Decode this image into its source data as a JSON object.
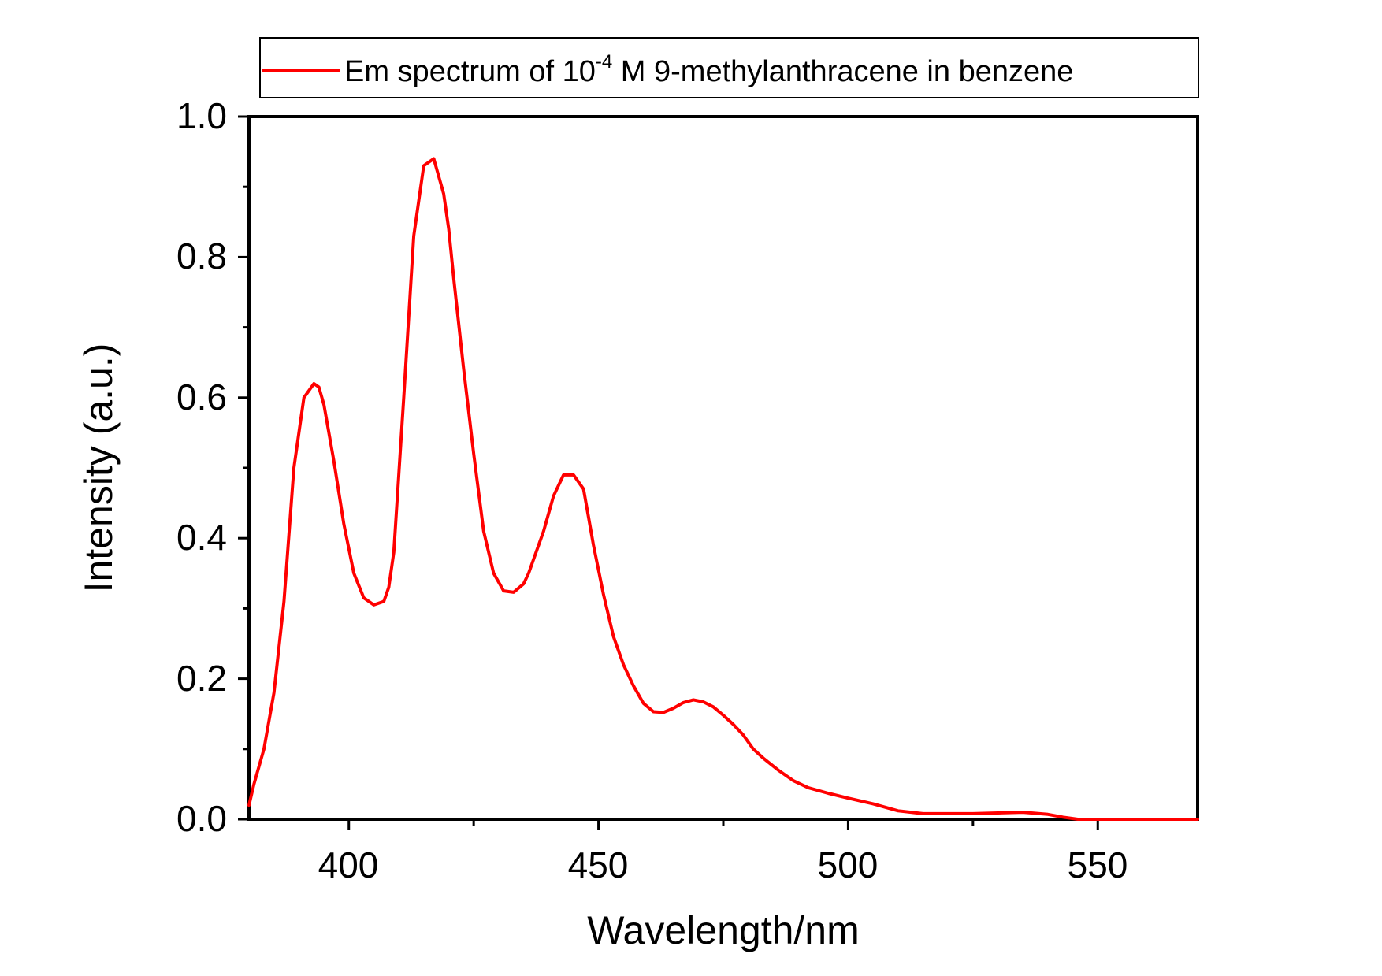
{
  "chart_data": {
    "type": "line",
    "title": "",
    "xlabel": "Wavelength/nm",
    "ylabel": "Intensity (a.u.)",
    "xlim": [
      380,
      570
    ],
    "ylim": [
      0.0,
      1.0
    ],
    "x_ticks": [
      "400",
      "450",
      "500",
      "550"
    ],
    "y_ticks": [
      "0.0",
      "0.2",
      "0.4",
      "0.6",
      "0.8",
      "1.0"
    ],
    "legend": {
      "position": "top",
      "entries": [
        {
          "prefix": "Em spectrum of 10",
          "superscript": "-4",
          "suffix": " M 9-methylanthracene in benzene"
        }
      ]
    },
    "colors": {
      "series": "#ff0000",
      "axes": "#000000"
    },
    "grid": false,
    "series": [
      {
        "name": "Em spectrum of 10-4 M 9-methylanthracene in benzene",
        "x": [
          380,
          381,
          383,
          385,
          387,
          389,
          391,
          393,
          394,
          395,
          397,
          399,
          401,
          403,
          405,
          407,
          408,
          409,
          411,
          413,
          415,
          417,
          419,
          420,
          421,
          423,
          425,
          427,
          429,
          431,
          433,
          435,
          436,
          437,
          439,
          441,
          443,
          445,
          447,
          448,
          449,
          451,
          453,
          455,
          457,
          459,
          461,
          463,
          465,
          467,
          469,
          471,
          473,
          475,
          477,
          479,
          481,
          483,
          486,
          489,
          492,
          496,
          500,
          505,
          510,
          515,
          520,
          525,
          530,
          535,
          540,
          543,
          546,
          550,
          560,
          570
        ],
        "y": [
          0.02,
          0.05,
          0.1,
          0.18,
          0.31,
          0.5,
          0.6,
          0.62,
          0.615,
          0.59,
          0.51,
          0.42,
          0.35,
          0.315,
          0.305,
          0.31,
          0.33,
          0.38,
          0.6,
          0.83,
          0.93,
          0.94,
          0.89,
          0.84,
          0.77,
          0.64,
          0.52,
          0.41,
          0.35,
          0.325,
          0.323,
          0.335,
          0.35,
          0.37,
          0.41,
          0.46,
          0.49,
          0.49,
          0.47,
          0.43,
          0.39,
          0.32,
          0.26,
          0.22,
          0.19,
          0.165,
          0.153,
          0.152,
          0.158,
          0.166,
          0.17,
          0.167,
          0.16,
          0.148,
          0.135,
          0.12,
          0.1,
          0.087,
          0.07,
          0.055,
          0.045,
          0.037,
          0.03,
          0.022,
          0.012,
          0.008,
          0.008,
          0.008,
          0.009,
          0.01,
          0.007,
          0.003,
          0.0,
          0.0,
          0.0,
          0.0
        ]
      }
    ]
  }
}
